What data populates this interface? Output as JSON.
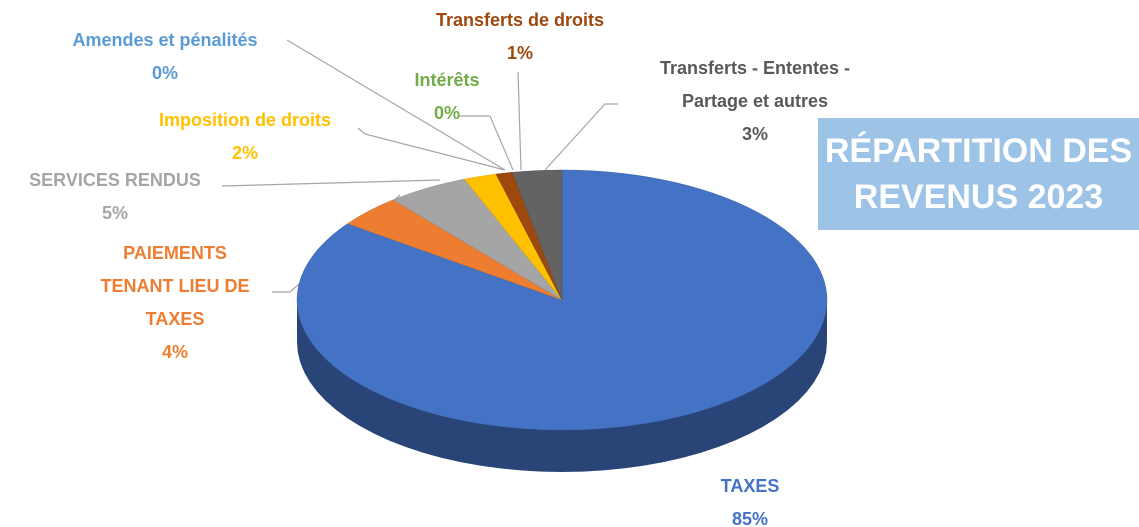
{
  "chart_data": {
    "type": "pie",
    "title": "RÉPARTITION DES REVENUS 2023",
    "categories": [
      "TAXES",
      "PAIEMENTS TENANT LIEU DE TAXES",
      "SERVICES RENDUS",
      "Imposition de droits",
      "Amendes et pénalités",
      "Intérêts",
      "Transferts de droits",
      "Transferts - Ententes - Partage et autres"
    ],
    "values": [
      85,
      4,
      5,
      2,
      0,
      0,
      1,
      3
    ],
    "value_labels": [
      "85%",
      "4%",
      "5%",
      "2%",
      "0%",
      "0%",
      "1%",
      "3%"
    ],
    "colors": [
      "#4472c4",
      "#ed7d31",
      "#a5a5a5",
      "#ffc000",
      "#5b9bd5",
      "#70ad47",
      "#9e480e",
      "#636363"
    ]
  }
}
